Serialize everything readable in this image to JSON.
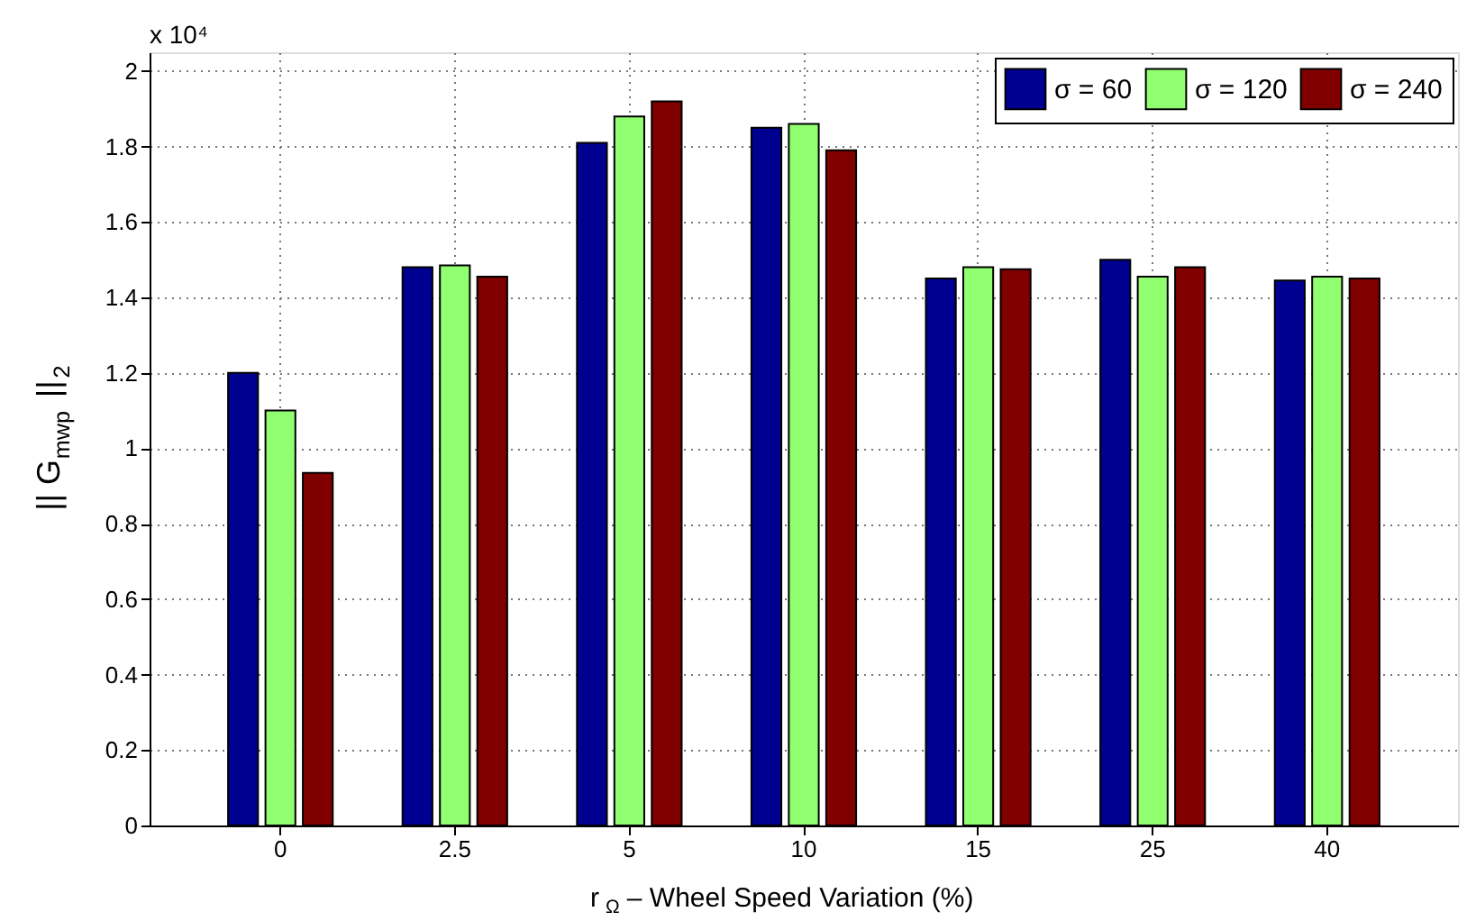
{
  "chart_data": {
    "type": "bar",
    "xlabel": "r$_{Ω}$ – Wheel Speed Variation (%)",
    "ylabel": "|| G$_{mwp}$ ||$_{2}$",
    "annotations": [
      "x 10⁴"
    ],
    "categories": [
      "0",
      "2.5",
      "5",
      "10",
      "15",
      "25",
      "40"
    ],
    "series": [
      {
        "name": "σ = 60",
        "color": "#000090",
        "values": [
          1.2,
          1.48,
          1.81,
          1.85,
          1.45,
          1.5,
          1.445
        ]
      },
      {
        "name": "σ = 120",
        "color": "#90ff70",
        "values": [
          1.1,
          1.485,
          1.88,
          1.86,
          1.48,
          1.455,
          1.455
        ]
      },
      {
        "name": "σ = 240",
        "color": "#800000",
        "values": [
          0.935,
          1.455,
          1.92,
          1.79,
          1.475,
          1.48,
          1.45
        ]
      }
    ],
    "ylim": [
      0,
      2.05
    ],
    "yticks": [
      0,
      0.2,
      0.4,
      0.6,
      0.8,
      1,
      1.2,
      1.4,
      1.6,
      1.8,
      2
    ],
    "grid": true,
    "legend": "top right"
  }
}
